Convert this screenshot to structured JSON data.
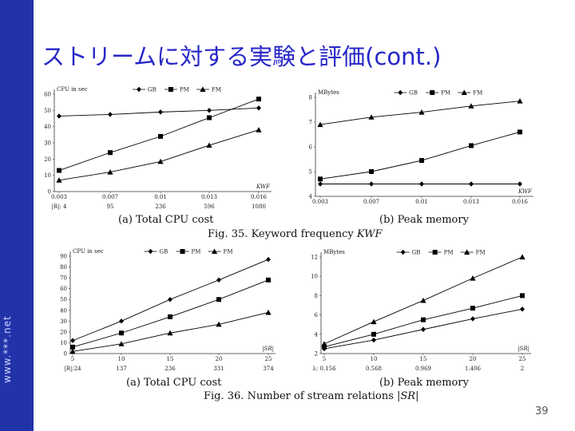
{
  "sidebar": {
    "text": "www.***.net",
    "color": "#2233aa"
  },
  "title": "ストリームに対する実験と評価(cont.)",
  "page_number": "39",
  "chart_data": [
    {
      "type": "line",
      "ylabel": "CPU in sec",
      "xlabel": "KWF",
      "x_ticks": [
        "0.003",
        "0.007",
        "0.01",
        "0.013",
        "0.016"
      ],
      "extra_row": [
        "|R|: 4",
        "95",
        "236",
        "596",
        "1080"
      ],
      "ylim": [
        0,
        60
      ],
      "y_ticks": [
        0,
        10,
        20,
        30,
        40,
        50,
        60
      ],
      "series": [
        {
          "name": "GB",
          "marker": "diamond",
          "values": [
            46.5,
            47.5,
            49,
            50,
            51.5
          ]
        },
        {
          "name": "PM",
          "marker": "square",
          "values": [
            13,
            24,
            34,
            45.5,
            57
          ]
        },
        {
          "name": "FM",
          "marker": "triangle",
          "values": [
            7,
            12,
            18.5,
            28.5,
            38
          ]
        }
      ],
      "caption": "(a) Total CPU cost"
    },
    {
      "type": "line",
      "ylabel": "MBytes",
      "xlabel": "KWF",
      "x_ticks": [
        "0.003",
        "0.007",
        "0.01",
        "0.013",
        "0.016"
      ],
      "ylim": [
        4,
        8
      ],
      "y_ticks": [
        4,
        5,
        6,
        7,
        8
      ],
      "series": [
        {
          "name": "GB",
          "marker": "diamond",
          "values": [
            4.5,
            4.5,
            4.5,
            4.5,
            4.5
          ]
        },
        {
          "name": "PM",
          "marker": "square",
          "values": [
            4.7,
            5,
            5.45,
            6.05,
            6.6
          ]
        },
        {
          "name": "FM",
          "marker": "triangle",
          "values": [
            6.9,
            7.2,
            7.4,
            7.65,
            7.85
          ]
        }
      ],
      "caption": "(b) Peak memory"
    },
    {
      "type": "line",
      "ylabel": "CPU in sec",
      "xlabel": "|SR|",
      "x_ticks": [
        "5",
        "10",
        "15",
        "20",
        "25"
      ],
      "extra_row": [
        "|R|:24",
        "137",
        "236",
        "331",
        "374"
      ],
      "ylim": [
        0,
        90
      ],
      "y_ticks": [
        0,
        10,
        20,
        30,
        40,
        50,
        60,
        70,
        80,
        90
      ],
      "series": [
        {
          "name": "GB",
          "marker": "diamond",
          "values": [
            12,
            30,
            50,
            68,
            87
          ]
        },
        {
          "name": "PM",
          "marker": "square",
          "values": [
            6,
            19,
            34,
            50,
            68
          ]
        },
        {
          "name": "FM",
          "marker": "triangle",
          "values": [
            2,
            9,
            19,
            27,
            38
          ]
        }
      ],
      "caption": "(a) Total CPU cost"
    },
    {
      "type": "line",
      "ylabel": "MBytes",
      "xlabel": "|SR|",
      "x_ticks": [
        "5",
        "10",
        "15",
        "20",
        "25"
      ],
      "extra_row": [
        "λ: 0.156",
        "0.568",
        "0.969",
        "1.406",
        "2"
      ],
      "ylim": [
        2,
        12
      ],
      "y_ticks": [
        2,
        4,
        6,
        8,
        10,
        12
      ],
      "series": [
        {
          "name": "GB",
          "marker": "diamond",
          "values": [
            2.5,
            3.4,
            4.5,
            5.6,
            6.6
          ]
        },
        {
          "name": "PM",
          "marker": "square",
          "values": [
            2.7,
            4,
            5.5,
            6.7,
            8
          ]
        },
        {
          "name": "FM",
          "marker": "triangle",
          "values": [
            3,
            5.3,
            7.5,
            9.8,
            12
          ]
        }
      ],
      "caption": "(b) Peak memory"
    }
  ],
  "figure_captions": [
    {
      "prefix": "Fig. 35. Keyword frequency ",
      "emph": "KWF"
    },
    {
      "prefix": "Fig. 36. Number of stream relations ",
      "emph": "|SR|"
    }
  ]
}
